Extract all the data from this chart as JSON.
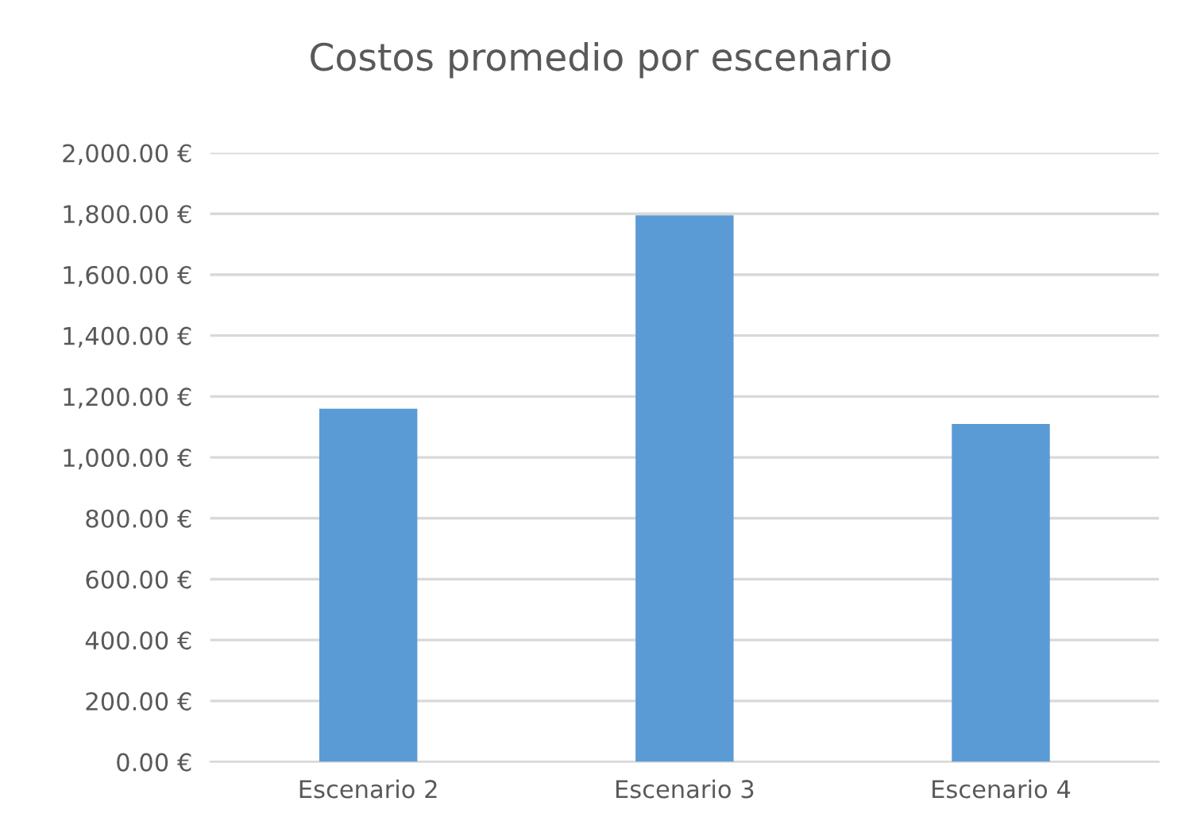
{
  "chart_data": {
    "type": "bar",
    "title": "Costos promedio por escenario",
    "categories": [
      "Escenario 2",
      "Escenario 3",
      "Escenario 4"
    ],
    "values": [
      1160,
      1795,
      1110
    ],
    "color": "#5b9bd5",
    "ylim": [
      0,
      2000
    ],
    "yticks": [
      {
        "value": 0,
        "label": "0.00 €"
      },
      {
        "value": 200,
        "label": "200.00 €"
      },
      {
        "value": 400,
        "label": "400.00 €"
      },
      {
        "value": 600,
        "label": "600.00 €"
      },
      {
        "value": 800,
        "label": "800.00 €"
      },
      {
        "value": 1000,
        "label": "1,000.00 €"
      },
      {
        "value": 1200,
        "label": "1,200.00 €"
      },
      {
        "value": 1400,
        "label": "1,400.00 €"
      },
      {
        "value": 1600,
        "label": "1,600.00 €"
      },
      {
        "value": 1800,
        "label": "1,800.00 €"
      },
      {
        "value": 2000,
        "label": "2,000.00 €"
      }
    ],
    "grid": "y"
  }
}
